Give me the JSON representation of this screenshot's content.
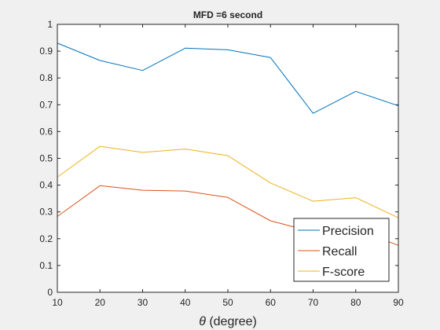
{
  "chart_data": {
    "type": "line",
    "title": "MFD =6 second",
    "xlabel_symbol": "θ",
    "xlabel": " (degree)",
    "ylabel": "",
    "x": [
      10,
      20,
      30,
      40,
      50,
      60,
      70,
      80,
      90
    ],
    "xlim": [
      10,
      90
    ],
    "ylim": [
      0,
      1
    ],
    "xticks": [
      "10",
      "20",
      "30",
      "40",
      "50",
      "60",
      "70",
      "80",
      "90"
    ],
    "yticks": [
      "0",
      "0.1",
      "0.2",
      "0.3",
      "0.4",
      "0.5",
      "0.6",
      "0.7",
      "0.8",
      "0.9",
      "1"
    ],
    "grid": false,
    "legend_position": "bottom-right",
    "series": [
      {
        "name": "Precision",
        "color": "#0072BD",
        "values": [
          0.93,
          0.865,
          0.828,
          0.911,
          0.905,
          0.876,
          0.668,
          0.75,
          0.696
        ]
      },
      {
        "name": "Recall",
        "color": "#D95319",
        "values": [
          0.283,
          0.398,
          0.381,
          0.378,
          0.354,
          0.267,
          0.225,
          0.235,
          0.175
        ]
      },
      {
        "name": "F-score",
        "color": "#EDB120",
        "values": [
          0.43,
          0.545,
          0.522,
          0.535,
          0.51,
          0.408,
          0.34,
          0.353,
          0.278
        ]
      }
    ]
  }
}
